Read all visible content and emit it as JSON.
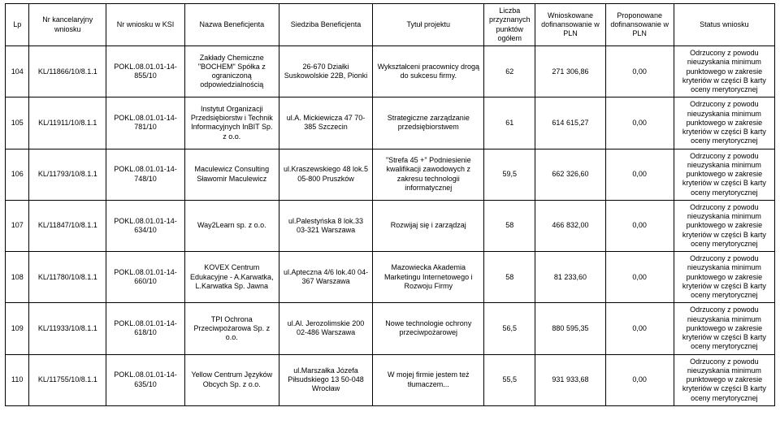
{
  "table": {
    "columns": [
      "Lp",
      "Nr kancelaryjny wniosku",
      "Nr wniosku w KSI",
      "Nazwa Beneficjenta",
      "Siedziba Beneficjenta",
      "Tytuł projektu",
      "Liczba przyznanych punktów ogółem",
      "Wnioskowane dofinansowanie w PLN",
      "Proponowane dofinansowanie w PLN",
      "Status wniosku"
    ],
    "rows": [
      {
        "lp": "104",
        "kanc": "KL/11866/10/8.1.1",
        "ksi": "POKL.08.01.01-14-855/10",
        "nazwa": "Zakłady Chemiczne \"BOCHEM\" Spółka z ograniczoną odpowiedzialnością",
        "siedziba": "26-670 Działki Suskowolskie 22B, Pionki",
        "tytul": "Wykształceni pracownicy drogą do sukcesu firmy.",
        "punkty": "62",
        "wnio": "271 306,86",
        "prop": "0,00",
        "status": "Odrzucony z powodu nieuzyskania minimum punktowego w zakresie kryteriów w części B karty oceny merytorycznej"
      },
      {
        "lp": "105",
        "kanc": "KL/11911/10/8.1.1",
        "ksi": "POKL.08.01.01-14-781/10",
        "nazwa": "Instytut Organizacji Przedsiębiorstw i Technik Informacyjnych InBIT Sp. z o.o.",
        "siedziba": "ul.A. Mickiewicza 47 70-385 Szczecin",
        "tytul": "Strategiczne zarządzanie przedsiębiorstwem",
        "punkty": "61",
        "wnio": "614 615,27",
        "prop": "0,00",
        "status": "Odrzucony z powodu nieuzyskania minimum punktowego w zakresie kryteriów w części B karty oceny merytorycznej"
      },
      {
        "lp": "106",
        "kanc": "KL/11793/10/8.1.1",
        "ksi": "POKL.08.01.01-14-748/10",
        "nazwa": "Maculewicz Consulting Sławomir Maculewicz",
        "siedziba": "ul.Kraszewskiego 48 lok.5 05-800 Pruszków",
        "tytul": "\"Strefa 45 +\" Podniesienie kwalifikacji zawodowych z zakresu technologii informatycznej",
        "punkty": "59,5",
        "wnio": "662 326,60",
        "prop": "0,00",
        "status": "Odrzucony z powodu nieuzyskania minimum punktowego w zakresie kryteriów w części B karty oceny merytorycznej"
      },
      {
        "lp": "107",
        "kanc": "KL/11847/10/8.1.1",
        "ksi": "POKL.08.01.01-14-634/10",
        "nazwa": "Way2Learn sp. z o.o.",
        "siedziba": "ul.Palestyńska 8 lok.33 03-321 Warszawa",
        "tytul": "Rozwijaj się i zarządzaj",
        "punkty": "58",
        "wnio": "466 832,00",
        "prop": "0,00",
        "status": "Odrzucony z powodu nieuzyskania minimum punktowego w zakresie kryteriów w części B karty oceny merytorycznej"
      },
      {
        "lp": "108",
        "kanc": "KL/11780/10/8.1.1",
        "ksi": "POKL.08.01.01-14-660/10",
        "nazwa": "KOVEX Centrum Edukacyjne - A.Karwatka, L.Karwatka Sp. Jawna",
        "siedziba": "ul.Apteczna 4/6 lok.40 04-367 Warszawa",
        "tytul": "Mazowiecka Akademia Marketingu Internetowego i Rozwoju Firmy",
        "punkty": "58",
        "wnio": "81 233,60",
        "prop": "0,00",
        "status": "Odrzucony z powodu nieuzyskania minimum punktowego w zakresie kryteriów w części B karty oceny merytorycznej"
      },
      {
        "lp": "109",
        "kanc": "KL/11933/10/8.1.1",
        "ksi": "POKL.08.01.01-14-618/10",
        "nazwa": "TPI Ochrona Przeciwpożarowa Sp. z o.o.",
        "siedziba": "ul.Al. Jerozolimskie 200 02-486 Warszawa",
        "tytul": "Nowe technologie ochrony przeciwpożarowej",
        "punkty": "56,5",
        "wnio": "880 595,35",
        "prop": "0,00",
        "status": "Odrzucony z powodu nieuzyskania minimum punktowego w zakresie kryteriów w części B karty oceny merytorycznej"
      },
      {
        "lp": "110",
        "kanc": "KL/11755/10/8.1.1",
        "ksi": "POKL.08.01.01-14-635/10",
        "nazwa": "Yellow Centrum Języków Obcych Sp. z o.o.",
        "siedziba": "ul.Marszałka Józefa Piłsudskiego 13 50-048 Wrocław",
        "tytul": "W mojej firmie jestem też tłumaczem...",
        "punkty": "55,5",
        "wnio": "931 933,68",
        "prop": "0,00",
        "status": "Odrzucony z powodu nieuzyskania minimum punktowego w zakresie kryteriów w części B karty oceny merytorycznej"
      }
    ]
  }
}
